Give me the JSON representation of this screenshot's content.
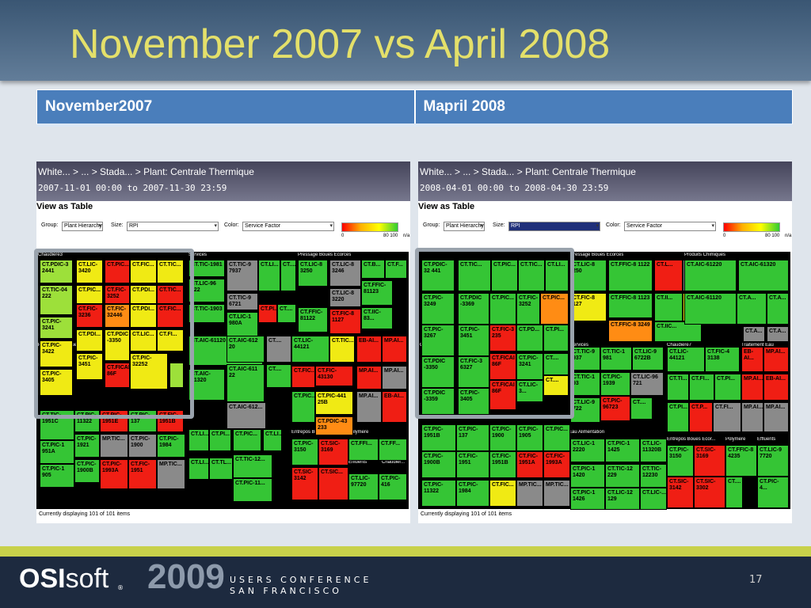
{
  "slide": {
    "title": "November 2007 vs April 2008",
    "page_number": "17"
  },
  "table": {
    "col1": "November2007",
    "col2": "Mapril 2008"
  },
  "footer": {
    "brand_bold": "OSI",
    "brand_light": "soft",
    "registered": "®",
    "year": "2009",
    "line1": "USERS CONFERENCE",
    "line2": "SAN FRANCISCO"
  },
  "colors": {
    "green": "#35c535",
    "red": "#f01e14",
    "yellow": "#f0ea14",
    "orange": "#ff8c14",
    "gray": "#8a8a8a",
    "lightgreen": "#9de03a"
  },
  "panels": [
    {
      "breadcrumb": "White... > ... > Stada... > Plant: Centrale Thermique",
      "date_range": "2007-11-01 00:00 to 2007-11-30 23:59",
      "view_as_table": "View as Table",
      "group_label": "Group:",
      "group_value": "Plant Hierarchy",
      "size_label": "Size:",
      "size_value": "RPI",
      "color_label": "Color:",
      "color_value": "Service Factor",
      "legend_min": "0",
      "legend_max": "80 100",
      "legend_na": "n/a",
      "status": "Currently displaying 101 of 101 items",
      "group_headers": [
        "Chaudiere3",
        "Services",
        "Pressage Boues Ecorces",
        "Produits Chimiques",
        "Chaudiere7",
        "Traitement Eau",
        "Eau Alimentation",
        "Entrepos Boues Ecor...",
        "Polymere",
        "Effluents",
        "Chaudier..."
      ],
      "tiles": [
        {
          "label": "CT.PDIC-3 2441",
          "color": "lightgreen"
        },
        {
          "label": "CT.LIC- 3420",
          "color": "yellow"
        },
        {
          "label": "CT.PIC...",
          "color": "red"
        },
        {
          "label": "CT.FIC...",
          "color": "yellow"
        },
        {
          "label": "CT.TIC...",
          "color": "yellow"
        },
        {
          "label": "CT.TIC-04 222",
          "color": "lightgreen"
        },
        {
          "label": "CT.PIC...",
          "color": "yellow"
        },
        {
          "label": "CT.FIC- 3252",
          "color": "red"
        },
        {
          "label": "CT.PDI...",
          "color": "yellow"
        },
        {
          "label": "CT.TIC...",
          "color": "red"
        },
        {
          "label": "CT.PIC-3241",
          "color": "lightgreen"
        },
        {
          "label": "CT.FIC- 3236",
          "color": "red"
        },
        {
          "label": "CT.FIC- 32446",
          "color": "orange"
        },
        {
          "label": "CT.PDI...",
          "color": "yellow"
        },
        {
          "label": "CT.FIC...",
          "color": "red"
        },
        {
          "label": "CT.PIC-3422",
          "color": "yellow"
        },
        {
          "label": "CT.PDI...",
          "color": "yellow"
        },
        {
          "label": "CT.PDIC -3350",
          "color": "yellow"
        },
        {
          "label": "CT.LIC...",
          "color": "yellow"
        },
        {
          "label": "CT.FI...",
          "color": "yellow"
        },
        {
          "label": "CT.PIC-3405",
          "color": "yellow"
        },
        {
          "label": "CT.PIC- 3451",
          "color": "yellow"
        },
        {
          "label": "CT.FICAI 86F",
          "color": "red"
        },
        {
          "label": "CT.PIC- 32252",
          "color": "yellow"
        },
        {
          "label": "",
          "color": "lightgreen"
        },
        {
          "label": "CT.TIC-1981",
          "color": "green"
        },
        {
          "label": "CT.TIC-9 7937",
          "color": "gray"
        },
        {
          "label": "CT.LI...",
          "color": "green"
        },
        {
          "label": "CT....",
          "color": "green"
        },
        {
          "label": "CT.LIC-96 722",
          "color": "green"
        },
        {
          "label": "CT.TIC-9 6721",
          "color": "gray"
        },
        {
          "label": "CT.PI...",
          "color": "red"
        },
        {
          "label": "CT....",
          "color": "green"
        },
        {
          "label": "CT.TIC-1903",
          "color": "green"
        },
        {
          "label": "CT.LIC-1 980A",
          "color": "green"
        },
        {
          "label": "CT.LIC-8 3250",
          "color": "green"
        },
        {
          "label": "CT.LIC-8 3246",
          "color": "gray"
        },
        {
          "label": "CT.B...",
          "color": "green"
        },
        {
          "label": "CT.F...",
          "color": "green"
        },
        {
          "label": "CT.LIC-8 3220",
          "color": "gray"
        },
        {
          "label": "CT.FFIC- 81123",
          "color": "green"
        },
        {
          "label": "CT.FFIC- 81122",
          "color": "green"
        },
        {
          "label": "CT.FIC-8 1127",
          "color": "red"
        },
        {
          "label": "CT.IIC-83...",
          "color": "green"
        },
        {
          "label": "CT.AIC-61120",
          "color": "green"
        },
        {
          "label": "CT.AIC-612 20",
          "color": "green"
        },
        {
          "label": "CT....",
          "color": "gray"
        },
        {
          "label": "CT.LIC-44121",
          "color": "green"
        },
        {
          "label": "CT.TIC...",
          "color": "yellow"
        },
        {
          "label": "EB-AI...",
          "color": "red"
        },
        {
          "label": "MP.AI...",
          "color": "red"
        },
        {
          "label": "CT.AIC-61320",
          "color": "green"
        },
        {
          "label": "CT.AIC-611 22",
          "color": "green"
        },
        {
          "label": "CT....",
          "color": "green"
        },
        {
          "label": "CT.FIC...",
          "color": "red"
        },
        {
          "label": "CT.FIC-43130",
          "color": "red"
        },
        {
          "label": "MP.AI...",
          "color": "red"
        },
        {
          "label": "MP.AI...",
          "color": "gray"
        },
        {
          "label": "CT.AIC-612...",
          "color": "gray"
        },
        {
          "label": "CT.PIC...",
          "color": "green"
        },
        {
          "label": "CT.PIC-441 25B",
          "color": "yellow"
        },
        {
          "label": "MP.AI...",
          "color": "gray"
        },
        {
          "label": "EB-AI...",
          "color": "red"
        },
        {
          "label": "CT.PDIC-43 233",
          "color": "orange"
        },
        {
          "label": "CT.TIC- 1951C",
          "color": "green"
        },
        {
          "label": "CT.PIC- 11322",
          "color": "green"
        },
        {
          "label": "CT.PIC- 1951E",
          "color": "red"
        },
        {
          "label": "CT.PIC- 137",
          "color": "green"
        },
        {
          "label": "CT.FIC- 1951B",
          "color": "red"
        },
        {
          "label": "CT.PIC-1 951A",
          "color": "green"
        },
        {
          "label": "CT.PIC- 1921",
          "color": "green"
        },
        {
          "label": "MP.TIC...",
          "color": "gray"
        },
        {
          "label": "CT.PIC- 1900",
          "color": "gray"
        },
        {
          "label": "CT.PIC- 1984",
          "color": "green"
        },
        {
          "label": "CT.PIC-1 905",
          "color": "green"
        },
        {
          "label": "CT.PIC- 1900B",
          "color": "green"
        },
        {
          "label": "CT.PIC- 1993A",
          "color": "red"
        },
        {
          "label": "CT.FIC- 1951",
          "color": "red"
        },
        {
          "label": "MP.TIC...",
          "color": "gray"
        },
        {
          "label": "CT.LI...",
          "color": "green"
        },
        {
          "label": "CT.PI...",
          "color": "green"
        },
        {
          "label": "CT.PIC...",
          "color": "green"
        },
        {
          "label": "CT.LI...",
          "color": "green"
        },
        {
          "label": "CT.LI...",
          "color": "green"
        },
        {
          "label": "CT.TL...",
          "color": "green"
        },
        {
          "label": "CT.TIC-12...",
          "color": "green"
        },
        {
          "label": "CT.PIC-11...",
          "color": "green"
        },
        {
          "label": "CT.PIC- 3150",
          "color": "green"
        },
        {
          "label": "CT.SIC- 3169",
          "color": "red"
        },
        {
          "label": "CT.FFI...",
          "color": "green"
        },
        {
          "label": "CT.FF...",
          "color": "green"
        },
        {
          "label": "CT.SIC- 3142",
          "color": "red"
        },
        {
          "label": "CT.SIC...",
          "color": "red"
        },
        {
          "label": "CT.LIC- 97720",
          "color": "green"
        },
        {
          "label": "CT.PIC- 416",
          "color": "green"
        }
      ]
    },
    {
      "breadcrumb": "White... > ... > Stada... > Plant: Centrale Thermique",
      "date_range": "2008-04-01 00:00 to 2008-04-30 23:59",
      "view_as_table": "View as Table",
      "group_label": "Group:",
      "group_value": "Plant Hierarchy",
      "size_label": "Size:",
      "size_value": "RPI",
      "color_label": "Color:",
      "color_value": "Service Factor",
      "legend_min": "0",
      "legend_max": "80 100",
      "legend_na": "n/a",
      "status": "Currently displaying 101 of 101 items",
      "group_headers": [
        "Chaudiere3",
        "Pressage Boues Ecorces",
        "Produits Chimiques",
        "Services",
        "Chaudiere7",
        "Traitement Eau",
        "Eau Alimentation",
        "Entrepos Boues Ecor...",
        "Polymere",
        "Effluents",
        "Chaudiere..."
      ],
      "tiles": [
        {
          "label": "CT.PDIC-32 441",
          "color": "green"
        },
        {
          "label": "CT.TIC...",
          "color": "green"
        },
        {
          "label": "CT.PIC...",
          "color": "green"
        },
        {
          "label": "CT.TIC...",
          "color": "green"
        },
        {
          "label": "CT.LI...",
          "color": "green"
        },
        {
          "label": "CT.PIC- 3249",
          "color": "green"
        },
        {
          "label": "CT.PDIC -3369",
          "color": "green"
        },
        {
          "label": "CT.PIC...",
          "color": "green"
        },
        {
          "label": "CT.FIC- 3252",
          "color": "green"
        },
        {
          "label": "CT.PIC...",
          "color": "orange"
        },
        {
          "label": "CT.PIC- 3267",
          "color": "green"
        },
        {
          "label": "CT.PIC- 3451",
          "color": "green"
        },
        {
          "label": "CT.FIC-3 235",
          "color": "red"
        },
        {
          "label": "CT.PD...",
          "color": "green"
        },
        {
          "label": "CT.PI...",
          "color": "green"
        },
        {
          "label": "CT.PDIC -3350",
          "color": "green"
        },
        {
          "label": "CT.FIC-3 6327",
          "color": "green"
        },
        {
          "label": "CT.FICAI 86F",
          "color": "red"
        },
        {
          "label": "CT.PIC- 3241",
          "color": "green"
        },
        {
          "label": "CT....",
          "color": "green"
        },
        {
          "label": "CT.PDIC -3359",
          "color": "green"
        },
        {
          "label": "CT.PIC- 3405",
          "color": "green"
        },
        {
          "label": "CT.FICAI 86F",
          "color": "red"
        },
        {
          "label": "CT.LIC-3...",
          "color": "green"
        },
        {
          "label": "CT....",
          "color": "yellow"
        },
        {
          "label": "CT.LIC-8 250",
          "color": "green"
        },
        {
          "label": "CT.FFIC-8 1122",
          "color": "green"
        },
        {
          "label": "CT.L...",
          "color": "red"
        },
        {
          "label": "CT.LI...",
          "color": "gray"
        },
        {
          "label": "CT.FFIC-8 1123",
          "color": "green"
        },
        {
          "label": "CT.FIC-8 127",
          "color": "yellow"
        },
        {
          "label": "CT.II...",
          "color": "green"
        },
        {
          "label": "CT.IIC...",
          "color": "yellow"
        },
        {
          "label": "CT.FFIC-8 3249",
          "color": "orange"
        },
        {
          "label": "CT.IIC...",
          "color": "green"
        },
        {
          "label": "CT.AIC-61220",
          "color": "green"
        },
        {
          "label": "CT.AIC-61320",
          "color": "green"
        },
        {
          "label": "CT.A...",
          "color": "green"
        },
        {
          "label": "CT.AIC-61120",
          "color": "green"
        },
        {
          "label": "CT.A...",
          "color": "green"
        },
        {
          "label": "CT.A...",
          "color": "gray"
        },
        {
          "label": "CT.A...",
          "color": "gray"
        },
        {
          "label": "CT.TIC-9 937",
          "color": "green"
        },
        {
          "label": "CT.TIC-1 981",
          "color": "green"
        },
        {
          "label": "CT.LIC-9 6722B",
          "color": "green"
        },
        {
          "label": "CT.TIC-1 93",
          "color": "green"
        },
        {
          "label": "CT.PIC- 1939",
          "color": "green"
        },
        {
          "label": "CT.LIC-96 721",
          "color": "gray"
        },
        {
          "label": "CT.LIC-9 722",
          "color": "green"
        },
        {
          "label": "CT.PIC- 96723",
          "color": "red"
        },
        {
          "label": "CT....",
          "color": "green"
        },
        {
          "label": "CT.LIC-44121",
          "color": "green"
        },
        {
          "label": "CT.FIC-4 3138",
          "color": "green"
        },
        {
          "label": "EB-AI...",
          "color": "red"
        },
        {
          "label": "MP.AI...",
          "color": "red"
        },
        {
          "label": "CT.TI...",
          "color": "green"
        },
        {
          "label": "CT.FI...",
          "color": "green"
        },
        {
          "label": "CT.PI...",
          "color": "green"
        },
        {
          "label": "MP.AI...",
          "color": "red"
        },
        {
          "label": "EB-AI...",
          "color": "red"
        },
        {
          "label": "CT.PI...",
          "color": "green"
        },
        {
          "label": "CT.P...",
          "color": "red"
        },
        {
          "label": "CT.FI...",
          "color": "gray"
        },
        {
          "label": "MP.AI...",
          "color": "gray"
        },
        {
          "label": "MP.AI...",
          "color": "gray"
        },
        {
          "label": "CT.PIC- 1951B",
          "color": "green"
        },
        {
          "label": "CT.PIC- 137",
          "color": "green"
        },
        {
          "label": "CT.PIC- 1900",
          "color": "green"
        },
        {
          "label": "CT.PIC- 1905",
          "color": "green"
        },
        {
          "label": "CT.PIC...",
          "color": "green"
        },
        {
          "label": "CT.PIC- 1900B",
          "color": "green"
        },
        {
          "label": "CT.FIC- 1951",
          "color": "green"
        },
        {
          "label": "CT.FIC- 1951B",
          "color": "green"
        },
        {
          "label": "CT.FIC- 1951A",
          "color": "red"
        },
        {
          "label": "CT.FIC- 1993A",
          "color": "red"
        },
        {
          "label": "CT.PIC- 11322",
          "color": "green"
        },
        {
          "label": "CT.PIC- 1984",
          "color": "green"
        },
        {
          "label": "CT.FIC...",
          "color": "yellow"
        },
        {
          "label": "MP.TIC...",
          "color": "gray"
        },
        {
          "label": "MP.TIC...",
          "color": "gray"
        },
        {
          "label": "CT.LIC-1 2220",
          "color": "green"
        },
        {
          "label": "CT.PIC-1 1425",
          "color": "green"
        },
        {
          "label": "CT.LIC- 11320B",
          "color": "green"
        },
        {
          "label": "CT.PIC-1 1420",
          "color": "green"
        },
        {
          "label": "CT.TIC-12 229",
          "color": "green"
        },
        {
          "label": "CT.TIC- 12230",
          "color": "green"
        },
        {
          "label": "CT.PIC-1 1426",
          "color": "green"
        },
        {
          "label": "CT.LIC-12 129",
          "color": "green"
        },
        {
          "label": "CT.LIC-...",
          "color": "green"
        },
        {
          "label": "CT.PIC- 3150",
          "color": "green"
        },
        {
          "label": "CT.SIC- 3169",
          "color": "red"
        },
        {
          "label": "CT.FFIC-8 4235",
          "color": "green"
        },
        {
          "label": "CT.LIC-9 7720",
          "color": "green"
        },
        {
          "label": "CT.SIC- 3142",
          "color": "red"
        },
        {
          "label": "CT.SIC- 3302",
          "color": "red"
        },
        {
          "label": "CT....",
          "color": "green"
        },
        {
          "label": "CT.PIC-4...",
          "color": "green"
        }
      ]
    }
  ]
}
